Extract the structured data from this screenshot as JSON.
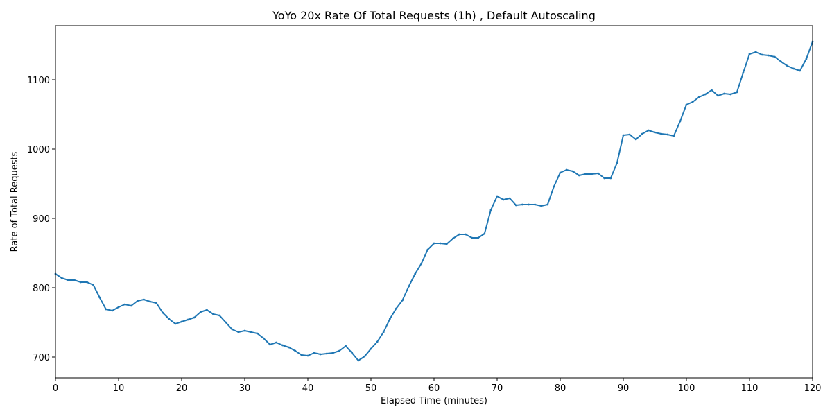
{
  "chart_data": {
    "type": "line",
    "title": "YoYo 20x Rate Of Total Requests (1h) , Default Autoscaling",
    "xlabel": "Elapsed Time (minutes)",
    "ylabel": "Rate of Total Requests",
    "xlim": [
      0,
      120
    ],
    "ylim": [
      670,
      1178
    ],
    "xticks": [
      0,
      10,
      20,
      30,
      40,
      50,
      60,
      70,
      80,
      90,
      100,
      110,
      120
    ],
    "yticks": [
      700,
      800,
      900,
      1000,
      1100
    ],
    "grid": false,
    "legend": "none",
    "line_color": "#1f77b4",
    "series": [
      {
        "x": [
          0,
          1,
          2,
          3,
          4,
          5,
          6,
          7,
          8,
          9,
          10,
          11,
          12,
          13,
          14,
          15,
          16,
          17,
          18,
          19,
          20,
          21,
          22,
          23,
          24,
          25,
          26,
          27,
          28,
          29,
          30,
          31,
          32,
          33,
          34,
          35,
          36,
          37,
          38,
          39,
          40,
          41,
          42,
          43,
          44,
          45,
          46,
          47,
          48,
          49,
          50,
          51,
          52,
          53,
          54,
          55,
          56,
          57,
          58,
          59,
          60,
          61,
          62,
          63,
          64,
          65,
          66,
          67,
          68,
          69,
          70,
          71,
          72,
          73,
          74,
          75,
          76,
          77,
          78,
          79,
          80,
          81,
          82,
          83,
          84,
          85,
          86,
          87,
          88,
          89,
          90,
          91,
          92,
          93,
          94,
          95,
          96,
          97,
          98,
          99,
          100,
          101,
          102,
          103,
          104,
          105,
          106,
          107,
          108,
          109,
          110,
          111,
          112,
          113,
          114,
          115,
          116,
          117,
          118,
          119,
          120
        ],
        "y": [
          820,
          814,
          811,
          811,
          808,
          808,
          804,
          786,
          769,
          767,
          772,
          776,
          774,
          781,
          783,
          780,
          778,
          764,
          755,
          748,
          751,
          754,
          757,
          765,
          768,
          762,
          760,
          750,
          740,
          736,
          738,
          736,
          734,
          727,
          718,
          721,
          717,
          714,
          709,
          703,
          702,
          706,
          704,
          705,
          706,
          709,
          716,
          706,
          695,
          701,
          712,
          722,
          736,
          755,
          770,
          782,
          802,
          820,
          835,
          855,
          864,
          864,
          863,
          871,
          877,
          877,
          872,
          872,
          878,
          912,
          932,
          927,
          929,
          919,
          920,
          920,
          920,
          918,
          920,
          946,
          966,
          970,
          968,
          962,
          964,
          964,
          965,
          958,
          958,
          980,
          1020,
          1021,
          1014,
          1022,
          1027,
          1024,
          1022,
          1021,
          1019,
          1040,
          1064,
          1068,
          1075,
          1079,
          1085,
          1077,
          1080,
          1079,
          1082,
          1110,
          1137,
          1140,
          1136,
          1135,
          1133,
          1126,
          1120,
          1116,
          1113,
          1130,
          1155
        ]
      }
    ]
  }
}
